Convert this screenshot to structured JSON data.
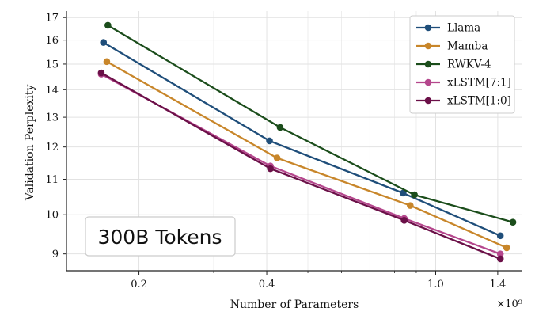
{
  "chart_data": {
    "type": "line",
    "xlabel": "Number of Parameters",
    "ylabel": "Validation Perplexity",
    "x_scale": "log",
    "y_scale": "log",
    "x_multiplier_label": "×10⁹",
    "xlim": [
      0.135,
      1.6
    ],
    "ylim": [
      8.6,
      17.3
    ],
    "x_ticks": [
      0.2,
      0.4,
      1.0,
      1.4
    ],
    "x_tick_labels": [
      "0.2",
      "0.4",
      "1.0",
      "1.4"
    ],
    "y_ticks": [
      9,
      10,
      11,
      12,
      13,
      14,
      15,
      16,
      17
    ],
    "y_tick_labels": [
      "9",
      "10",
      "11",
      "12",
      "13",
      "14",
      "15",
      "16",
      "17"
    ],
    "grid": true,
    "legend_position": "top-right",
    "annotation": "300B Tokens",
    "series": [
      {
        "name": "Llama",
        "color": "#1f4e7a",
        "x": [
          0.165,
          0.406,
          0.838,
          1.42
        ],
        "y": [
          15.9,
          12.2,
          10.6,
          9.45
        ]
      },
      {
        "name": "Mamba",
        "color": "#c8862a",
        "x": [
          0.168,
          0.423,
          0.871,
          1.47
        ],
        "y": [
          15.1,
          11.65,
          10.25,
          9.15
        ]
      },
      {
        "name": "RWKV-4",
        "color": "#1b4d1b",
        "x": [
          0.169,
          0.43,
          0.891,
          1.52
        ],
        "y": [
          16.65,
          12.65,
          10.55,
          9.8
        ]
      },
      {
        "name": "xLSTM[7:1]",
        "color": "#b5478d",
        "x": [
          0.163,
          0.408,
          0.843,
          1.42
        ],
        "y": [
          14.6,
          11.4,
          9.9,
          9.0
        ]
      },
      {
        "name": "xLSTM[1:0]",
        "color": "#6b1048",
        "x": [
          0.163,
          0.408,
          0.843,
          1.42
        ],
        "y": [
          14.65,
          11.32,
          9.85,
          8.88
        ]
      }
    ]
  }
}
